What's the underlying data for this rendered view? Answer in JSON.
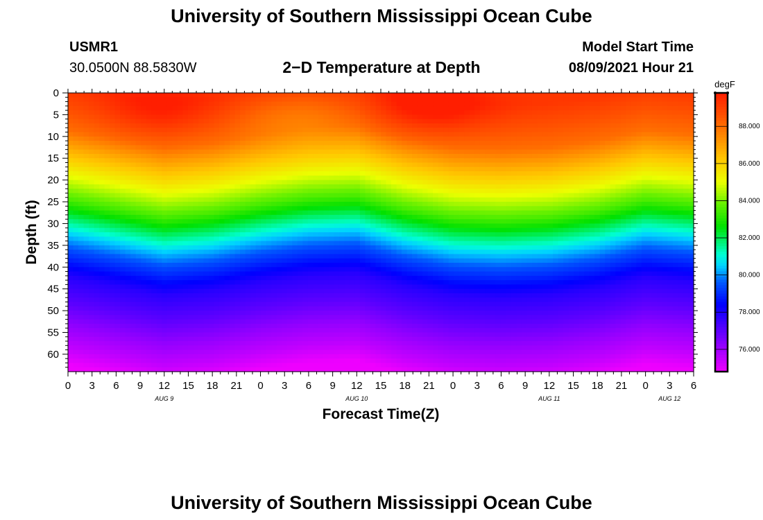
{
  "title_top": "University of Southern Mississippi Ocean Cube",
  "title_bottom": "University of Southern Mississippi Ocean Cube",
  "station": {
    "id": "USMR1",
    "coords": "30.0500N  88.5830W"
  },
  "plot_heading": "2−D Temperature at Depth",
  "model": {
    "label": "Model Start Time",
    "time": "08/09/2021 Hour 21"
  },
  "chart_data": {
    "type": "heatmap",
    "title": "2−D Temperature at Depth",
    "xlabel": "Forecast Time(Z)",
    "ylabel": "Depth (ft)",
    "x_unit": "hours from 0Z Aug 9",
    "xlim": [
      0,
      78
    ],
    "ylim": [
      0,
      64
    ],
    "x_ticks": [
      {
        "value": 0,
        "label": "0"
      },
      {
        "value": 3,
        "label": "3"
      },
      {
        "value": 6,
        "label": "6"
      },
      {
        "value": 9,
        "label": "9"
      },
      {
        "value": 12,
        "label": "12"
      },
      {
        "value": 15,
        "label": "15"
      },
      {
        "value": 18,
        "label": "18"
      },
      {
        "value": 21,
        "label": "21"
      },
      {
        "value": 24,
        "label": "0"
      },
      {
        "value": 27,
        "label": "3"
      },
      {
        "value": 30,
        "label": "6"
      },
      {
        "value": 33,
        "label": "9"
      },
      {
        "value": 36,
        "label": "12"
      },
      {
        "value": 39,
        "label": "15"
      },
      {
        "value": 42,
        "label": "18"
      },
      {
        "value": 45,
        "label": "21"
      },
      {
        "value": 48,
        "label": "0"
      },
      {
        "value": 51,
        "label": "3"
      },
      {
        "value": 54,
        "label": "6"
      },
      {
        "value": 57,
        "label": "9"
      },
      {
        "value": 60,
        "label": "12"
      },
      {
        "value": 63,
        "label": "15"
      },
      {
        "value": 66,
        "label": "18"
      },
      {
        "value": 69,
        "label": "21"
      },
      {
        "value": 72,
        "label": "0"
      },
      {
        "value": 75,
        "label": "3"
      },
      {
        "value": 78,
        "label": "6"
      }
    ],
    "date_labels": [
      {
        "value": 12,
        "label": "AUG 9"
      },
      {
        "value": 36,
        "label": "AUG 10"
      },
      {
        "value": 60,
        "label": "AUG 11"
      },
      {
        "value": 75,
        "label": "AUG 12"
      }
    ],
    "y_ticks": [
      0,
      5,
      10,
      15,
      20,
      25,
      30,
      35,
      40,
      45,
      50,
      55,
      60
    ],
    "colorbar": {
      "unit": "degF",
      "range": [
        74.8,
        89.8
      ],
      "ticks": [
        "76.000",
        "78.000",
        "80.000",
        "82.000",
        "84.000",
        "86.000",
        "88.000"
      ],
      "tick_values": [
        76,
        78,
        80,
        82,
        84,
        86,
        88
      ]
    },
    "profile_by_depth": [
      {
        "depth_ft": 0,
        "temp_f": 89.2
      },
      {
        "depth_ft": 10,
        "temp_f": 88.0
      },
      {
        "depth_ft": 16,
        "temp_f": 86.3
      },
      {
        "depth_ft": 20,
        "temp_f": 85.2
      },
      {
        "depth_ft": 26,
        "temp_f": 83.5
      },
      {
        "depth_ft": 30,
        "temp_f": 82.0
      },
      {
        "depth_ft": 34,
        "temp_f": 80.5
      },
      {
        "depth_ft": 38,
        "temp_f": 79.3
      },
      {
        "depth_ft": 44,
        "temp_f": 77.8
      },
      {
        "depth_ft": 50,
        "temp_f": 77.0
      },
      {
        "depth_ft": 55,
        "temp_f": 76.2
      },
      {
        "depth_ft": 60,
        "temp_f": 75.5
      },
      {
        "depth_ft": 64,
        "temp_f": 74.8
      }
    ],
    "depth_shift_by_hour": [
      {
        "hour": 0,
        "shift_ft": -1.5
      },
      {
        "hour": 6,
        "shift_ft": 0.5
      },
      {
        "hour": 12,
        "shift_ft": 2.5
      },
      {
        "hour": 18,
        "shift_ft": 1.5
      },
      {
        "hour": 24,
        "shift_ft": -0.5
      },
      {
        "hour": 30,
        "shift_ft": -2.0
      },
      {
        "hour": 36,
        "shift_ft": -2.5
      },
      {
        "hour": 42,
        "shift_ft": 0.5
      },
      {
        "hour": 48,
        "shift_ft": 2.5
      },
      {
        "hour": 54,
        "shift_ft": 3.0
      },
      {
        "hour": 60,
        "shift_ft": 2.5
      },
      {
        "hour": 66,
        "shift_ft": 1.0
      },
      {
        "hour": 72,
        "shift_ft": -1.5
      },
      {
        "hour": 78,
        "shift_ft": -0.5
      }
    ],
    "surface_warm_spots": [
      {
        "hour": 11,
        "depth_ft": 4,
        "delta_f": 0.8
      },
      {
        "hour": 45,
        "depth_ft": 3,
        "delta_f": 1.2
      },
      {
        "hour": 28,
        "depth_ft": 5,
        "delta_f": -0.6
      }
    ]
  }
}
